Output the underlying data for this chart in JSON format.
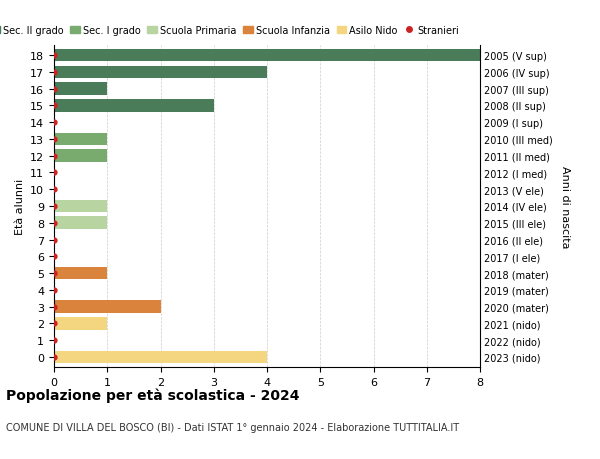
{
  "ages": [
    18,
    17,
    16,
    15,
    14,
    13,
    12,
    11,
    10,
    9,
    8,
    7,
    6,
    5,
    4,
    3,
    2,
    1,
    0
  ],
  "right_labels": [
    "2005 (V sup)",
    "2006 (IV sup)",
    "2007 (III sup)",
    "2008 (II sup)",
    "2009 (I sup)",
    "2010 (III med)",
    "2011 (II med)",
    "2012 (I med)",
    "2013 (V ele)",
    "2014 (IV ele)",
    "2015 (III ele)",
    "2016 (II ele)",
    "2017 (I ele)",
    "2018 (mater)",
    "2019 (mater)",
    "2020 (mater)",
    "2021 (nido)",
    "2022 (nido)",
    "2023 (nido)"
  ],
  "bar_values": [
    8,
    4,
    1,
    3,
    0,
    1,
    1,
    0,
    0,
    1,
    1,
    0,
    0,
    1,
    0,
    2,
    1,
    0,
    4
  ],
  "bar_colors": [
    "#4a7c59",
    "#4a7c59",
    "#4a7c59",
    "#4a7c59",
    "#4a7c59",
    "#7aab6e",
    "#7aab6e",
    "#7aab6e",
    "#b8d4a0",
    "#b8d4a0",
    "#b8d4a0",
    "#b8d4a0",
    "#b8d4a0",
    "#d9833c",
    "#d9833c",
    "#d9833c",
    "#f5d680",
    "#f5d680",
    "#f5d680"
  ],
  "stranieri_dots": [
    18,
    17,
    16,
    15,
    14,
    13,
    12,
    11,
    10,
    9,
    8,
    7,
    6,
    5,
    4,
    3,
    2,
    1,
    0
  ],
  "legend_labels": [
    "Sec. II grado",
    "Sec. I grado",
    "Scuola Primaria",
    "Scuola Infanzia",
    "Asilo Nido",
    "Stranieri"
  ],
  "legend_colors": [
    "#4a7c59",
    "#7aab6e",
    "#b8d4a0",
    "#d9833c",
    "#f5d680",
    "#cc2222"
  ],
  "ylabel_left": "Età alunni",
  "ylabel_right": "Anni di nascita",
  "title": "Popolazione per età scolastica - 2024",
  "subtitle": "COMUNE DI VILLA DEL BOSCO (BI) - Dati ISTAT 1° gennaio 2024 - Elaborazione TUTTITALIA.IT",
  "xlim": [
    0,
    8
  ],
  "xticks": [
    0,
    1,
    2,
    3,
    4,
    5,
    6,
    7,
    8
  ],
  "background_color": "#ffffff",
  "grid_color": "#cccccc"
}
